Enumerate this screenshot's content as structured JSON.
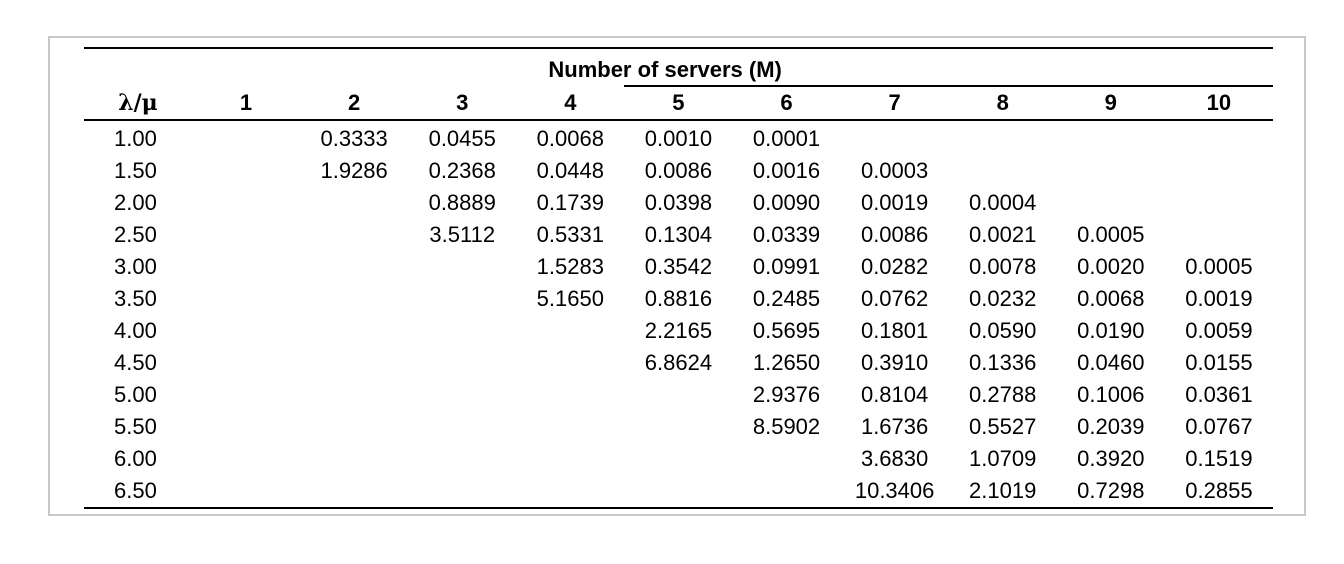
{
  "table": {
    "group_header": "Number of servers (M)",
    "row_header": "λ/μ",
    "columns": [
      "1",
      "2",
      "3",
      "4",
      "5",
      "6",
      "7",
      "8",
      "9",
      "10"
    ],
    "rows": [
      {
        "label": "1.00",
        "cells": [
          "",
          "0.3333",
          "0.0455",
          "0.0068",
          "0.0010",
          "0.0001",
          "",
          "",
          "",
          ""
        ]
      },
      {
        "label": "1.50",
        "cells": [
          "",
          "1.9286",
          "0.2368",
          "0.0448",
          "0.0086",
          "0.0016",
          "0.0003",
          "",
          "",
          ""
        ]
      },
      {
        "label": "2.00",
        "cells": [
          "",
          "",
          "0.8889",
          "0.1739",
          "0.0398",
          "0.0090",
          "0.0019",
          "0.0004",
          "",
          ""
        ]
      },
      {
        "label": "2.50",
        "cells": [
          "",
          "",
          "3.5112",
          "0.5331",
          "0.1304",
          "0.0339",
          "0.0086",
          "0.0021",
          "0.0005",
          ""
        ]
      },
      {
        "label": "3.00",
        "cells": [
          "",
          "",
          "",
          "1.5283",
          "0.3542",
          "0.0991",
          "0.0282",
          "0.0078",
          "0.0020",
          "0.0005"
        ]
      },
      {
        "label": "3.50",
        "cells": [
          "",
          "",
          "",
          "5.1650",
          "0.8816",
          "0.2485",
          "0.0762",
          "0.0232",
          "0.0068",
          "0.0019"
        ]
      },
      {
        "label": "4.00",
        "cells": [
          "",
          "",
          "",
          "",
          "2.2165",
          "0.5695",
          "0.1801",
          "0.0590",
          "0.0190",
          "0.0059"
        ]
      },
      {
        "label": "4.50",
        "cells": [
          "",
          "",
          "",
          "",
          "6.8624",
          "1.2650",
          "0.3910",
          "0.1336",
          "0.0460",
          "0.0155"
        ]
      },
      {
        "label": "5.00",
        "cells": [
          "",
          "",
          "",
          "",
          "",
          "2.9376",
          "0.8104",
          "0.2788",
          "0.1006",
          "0.0361"
        ]
      },
      {
        "label": "5.50",
        "cells": [
          "",
          "",
          "",
          "",
          "",
          "8.5902",
          "1.6736",
          "0.5527",
          "0.2039",
          "0.0767"
        ]
      },
      {
        "label": "6.00",
        "cells": [
          "",
          "",
          "",
          "",
          "",
          "",
          "3.6830",
          "1.0709",
          "0.3920",
          "0.1519"
        ]
      },
      {
        "label": "6.50",
        "cells": [
          "",
          "",
          "",
          "",
          "",
          "",
          "10.3406",
          "2.1019",
          "0.7298",
          "0.2855"
        ]
      }
    ]
  }
}
